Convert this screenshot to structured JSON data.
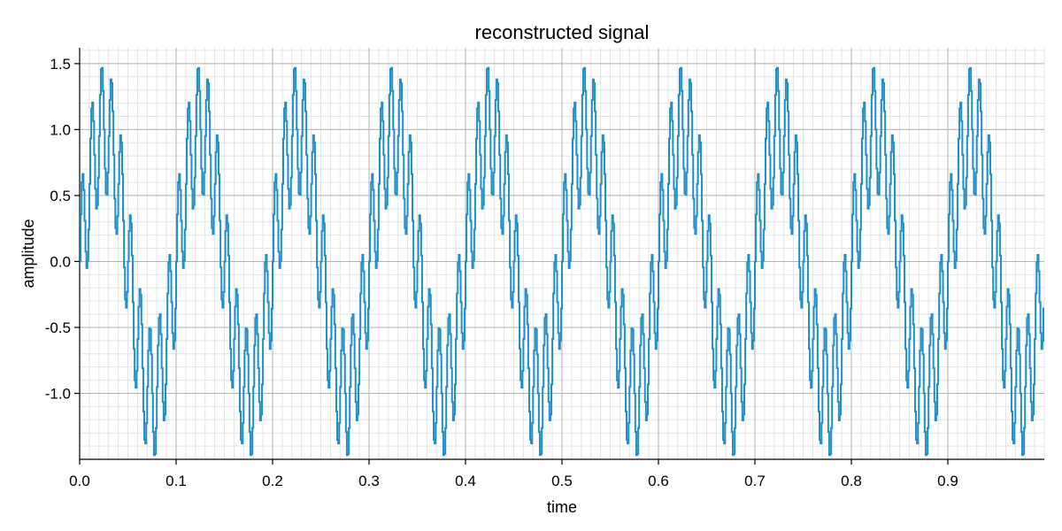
{
  "chart_data": {
    "type": "line",
    "title": "reconstructed signal",
    "xlabel": "time",
    "ylabel": "amplitude",
    "xlim": [
      0,
      1.0
    ],
    "ylim": [
      -1.5,
      1.62
    ],
    "x_ticks": [
      0.0,
      0.1,
      0.2,
      0.3,
      0.4,
      0.5,
      0.6,
      0.7,
      0.8,
      0.9
    ],
    "x_tick_labels": [
      "0.0",
      "0.1",
      "0.2",
      "0.3",
      "0.4",
      "0.5",
      "0.6",
      "0.7",
      "0.8",
      "0.9"
    ],
    "y_ticks": [
      -1.0,
      -0.5,
      0.0,
      0.5,
      1.0,
      1.5
    ],
    "y_tick_labels": [
      "-1.0",
      "-0.5",
      "0.0",
      "0.5",
      "1.0",
      "1.5"
    ],
    "grid": "major and minor",
    "legend": "none",
    "series": [
      {
        "color": "#1f8fc8",
        "signal": {
          "components": [
            {
              "frequency_hz": 10,
              "amplitude": 1.0,
              "kind": "sine"
            },
            {
              "frequency_hz": 100,
              "amplitude": 0.5,
              "kind": "sine"
            }
          ],
          "sample_rate_hz": 1000,
          "x_start": 0.0,
          "x_end": 0.999,
          "hold": "step"
        }
      }
    ]
  }
}
